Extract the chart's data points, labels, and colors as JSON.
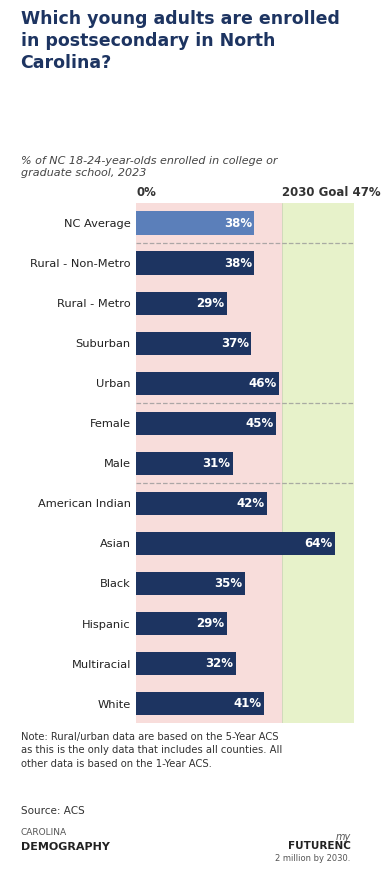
{
  "title": "Which young adults are enrolled\nin postsecondary in North\nCarolina?",
  "subtitle": "% of NC 18-24-year-olds enrolled in college or\ngraduate school, 2023",
  "categories": [
    "NC Average",
    "Rural - Non-Metro",
    "Rural - Metro",
    "Suburban",
    "Urban",
    "Female",
    "Male",
    "American Indian",
    "Asian",
    "Black",
    "Hispanic",
    "Multiracial",
    "White"
  ],
  "values": [
    38,
    38,
    29,
    37,
    46,
    45,
    31,
    42,
    64,
    35,
    29,
    32,
    41
  ],
  "nc_avg_bar_color": "#5b7fba",
  "bar_color": "#1d3461",
  "label_color": "#ffffff",
  "title_color": "#1d3461",
  "goal": 47,
  "x_max": 70,
  "note_text": "Note: Rural/urban data are based on the 5-Year ACS\nas this is the only data that includes all counties. All\nother data is based on the 1-Year ACS.",
  "source_text": "Source: ACS",
  "separator_after_indices": [
    0,
    4,
    6
  ],
  "red_zone_color": "#f4c2be",
  "green_zone_color": "#d4e8a0"
}
